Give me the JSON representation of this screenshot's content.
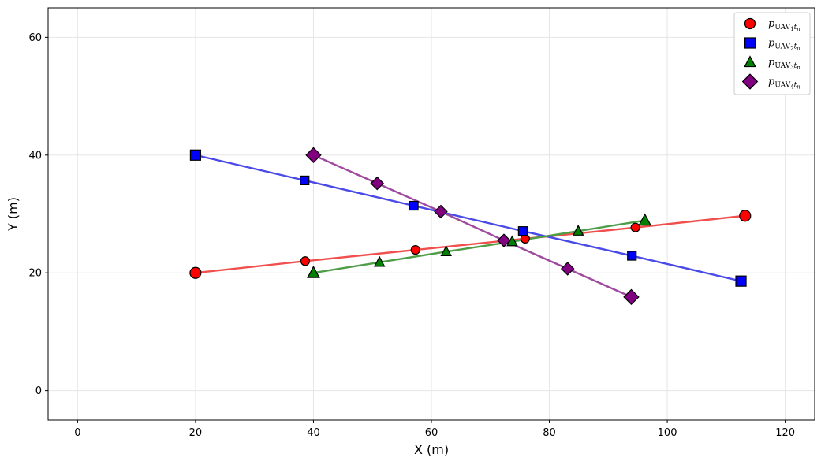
{
  "chart_data": {
    "type": "line",
    "title": "",
    "xlabel": "X (m)",
    "ylabel": "Y (m)",
    "xlim": [
      -5,
      125
    ],
    "ylim": [
      -5,
      65
    ],
    "xticks": [
      0,
      20,
      40,
      60,
      80,
      100,
      120
    ],
    "yticks": [
      0,
      20,
      40,
      60
    ],
    "grid": true,
    "legend_position": "top-right",
    "series": [
      {
        "name": "p_{UAV1 tn}",
        "legend": {
          "base": "p",
          "sub1": "UAV",
          "sub2": "1",
          "sub3": "t",
          "sub4": "n"
        },
        "color": "#ff0000",
        "line_color": "#f0504d",
        "marker": "circle",
        "x": [
          20,
          38.6,
          57.3,
          75.9,
          94.6,
          113.2
        ],
        "y": [
          20,
          22,
          23.9,
          25.8,
          27.7,
          29.7
        ]
      },
      {
        "name": "p_{UAV2 tn}",
        "legend": {
          "base": "p",
          "sub1": "UAV",
          "sub2": "2",
          "sub3": "t",
          "sub4": "n"
        },
        "color": "#0000ff",
        "line_color": "#4a4ae8",
        "marker": "square",
        "x": [
          20,
          38.5,
          57,
          75.5,
          94,
          112.5
        ],
        "y": [
          40,
          35.7,
          31.4,
          27.1,
          22.9,
          18.6
        ]
      },
      {
        "name": "p_{UAV3 tn}",
        "legend": {
          "base": "p",
          "sub1": "UAV",
          "sub2": "3",
          "sub3": "t",
          "sub4": "n"
        },
        "color": "#008000",
        "line_color": "#4e9e48",
        "marker": "triangle",
        "x": [
          40,
          51.2,
          62.5,
          73.7,
          84.9,
          96.2
        ],
        "y": [
          20,
          21.8,
          23.6,
          25.3,
          27.1,
          28.9
        ]
      },
      {
        "name": "p_{UAV4 tn}",
        "legend": {
          "base": "p",
          "sub1": "UAV",
          "sub2": "4",
          "sub3": "t",
          "sub4": "n"
        },
        "color": "#800080",
        "line_color": "#9e4a9e",
        "marker": "diamond",
        "x": [
          40,
          50.8,
          61.6,
          72.3,
          83.1,
          93.9
        ],
        "y": [
          40,
          35.2,
          30.4,
          25.5,
          20.7,
          15.9
        ]
      }
    ]
  }
}
